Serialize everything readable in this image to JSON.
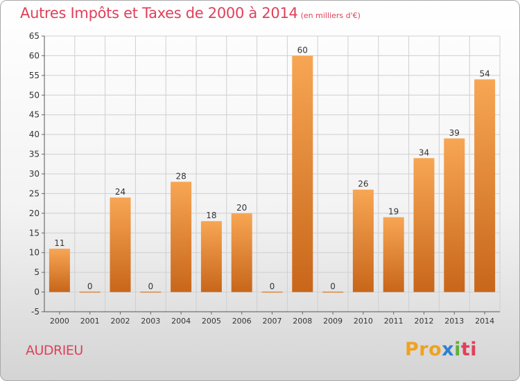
{
  "title": "Autres Impôts et Taxes de 2000 à 2014",
  "subtitle": "(en milliers d'€)",
  "location": "AUDRIEU",
  "logo": {
    "parts": [
      "Pro",
      "x",
      "i",
      "ti"
    ],
    "colors": [
      "#f0a21e",
      "#2f7fd0",
      "#5fae3a",
      "#e0405a"
    ]
  },
  "colors": {
    "bar_top": "#f7a654",
    "bar_bottom": "#c8661a",
    "title": "#e0405a",
    "grid": "#cfcfcf"
  },
  "chart_data": {
    "type": "bar",
    "title": "Autres Impôts et Taxes de 2000 à 2014",
    "subtitle": "(en milliers d'€)",
    "xlabel": "",
    "ylabel": "",
    "categories": [
      "2000",
      "2001",
      "2002",
      "2003",
      "2004",
      "2005",
      "2006",
      "2007",
      "2008",
      "2009",
      "2010",
      "2011",
      "2012",
      "2013",
      "2014"
    ],
    "values": [
      11,
      0,
      24,
      0,
      28,
      18,
      20,
      0,
      60,
      0,
      26,
      19,
      34,
      39,
      54
    ],
    "ylim": [
      -5,
      65
    ],
    "yticks": [
      -5,
      0,
      5,
      10,
      15,
      20,
      25,
      30,
      35,
      40,
      45,
      50,
      55,
      60,
      65
    ],
    "grid": true,
    "legend": "none"
  }
}
